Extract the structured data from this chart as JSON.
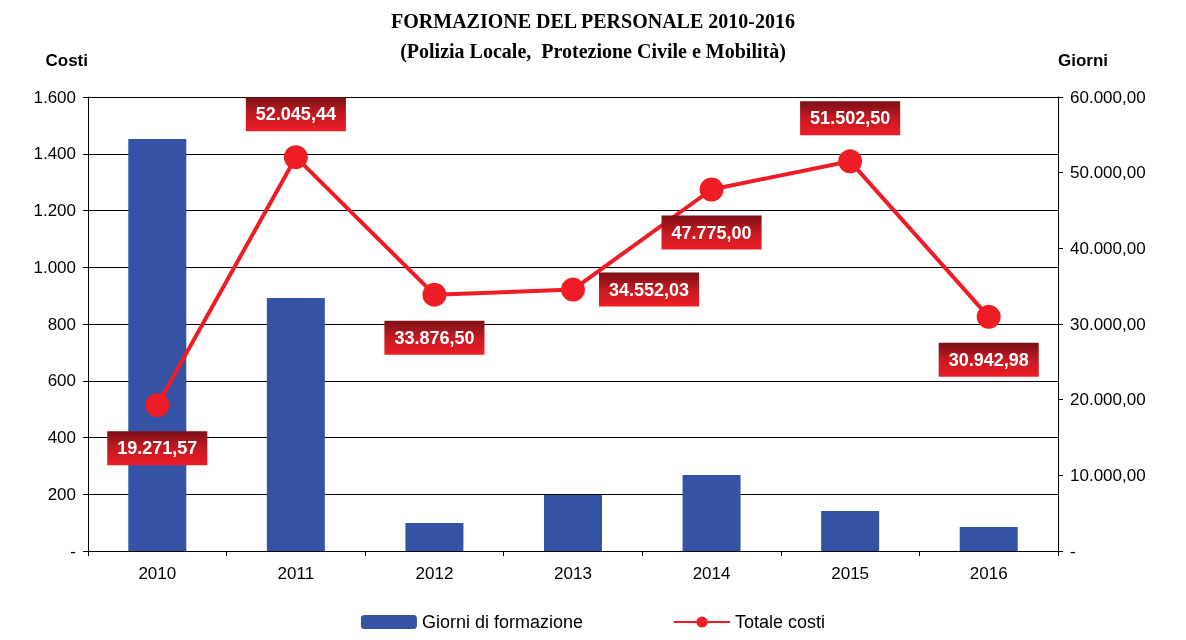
{
  "chart_data": {
    "type": "bar",
    "title": "FORMAZIONE DEL PERSONALE 2010-2016",
    "subtitle": "(Polizia Locale,  Protezione Civile e Mobilità)",
    "ylabel": "Costi",
    "y2label": "Giorni",
    "categories": [
      "2010",
      "2011",
      "2012",
      "2013",
      "2014",
      "2015",
      "2016"
    ],
    "series": [
      {
        "name": "Giorni di formazione",
        "color": "#3553a5",
        "values": [
          1452,
          892,
          99,
          197,
          268,
          141,
          85
        ]
      },
      {
        "name": "Totale costi",
        "type": "line",
        "axis": "y2",
        "color": "#ee1c25",
        "marker": "circle",
        "values": [
          19271.57,
          52045.44,
          33876.5,
          34552.03,
          47775.0,
          51502.5,
          30942.98
        ],
        "value_labels": [
          "19.271,57",
          "52.045,44",
          "33.876,50",
          "34.552,03",
          "47.775,00",
          "51.502,50",
          "30.942,98"
        ]
      }
    ],
    "ylim": [
      0,
      1600
    ],
    "yticks": [
      {
        "value": 0,
        "label": "-"
      },
      {
        "value": 200,
        "label": "200"
      },
      {
        "value": 400,
        "label": "400"
      },
      {
        "value": 600,
        "label": "600"
      },
      {
        "value": 800,
        "label": "800"
      },
      {
        "value": 1000,
        "label": "1.000"
      },
      {
        "value": 1200,
        "label": "1.200"
      },
      {
        "value": 1400,
        "label": "1.400"
      },
      {
        "value": 1600,
        "label": "1.600"
      }
    ],
    "y2lim": [
      0,
      60000
    ],
    "y2ticks": [
      {
        "value": 0,
        "label": "-"
      },
      {
        "value": 10000,
        "label": "10.000,00"
      },
      {
        "value": 20000,
        "label": "20.000,00"
      },
      {
        "value": 30000,
        "label": "30.000,00"
      },
      {
        "value": 40000,
        "label": "40.000,00"
      },
      {
        "value": 50000,
        "label": "50.000,00"
      },
      {
        "value": 60000,
        "label": "60.000,00"
      }
    ],
    "grid": "y",
    "legend": "bottom"
  }
}
